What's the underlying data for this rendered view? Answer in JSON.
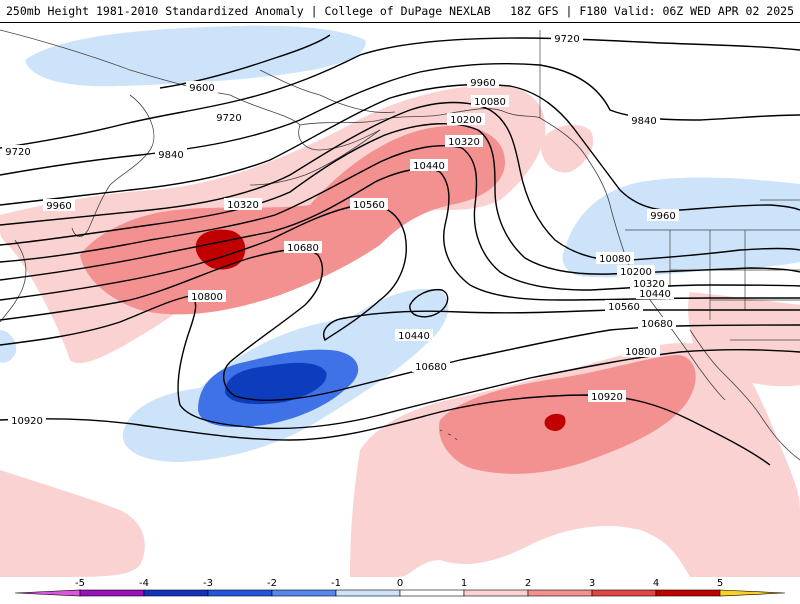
{
  "header": {
    "title_left": "250mb Height 1981-2010 Standardized Anomaly | College of DuPage NEXLAB",
    "title_right": "18Z GFS | F180 Valid: 06Z WED APR 02 2025"
  },
  "legend": {
    "ticks": [
      "-5",
      "-4",
      "-3",
      "-2",
      "-1",
      "0",
      "1",
      "2",
      "3",
      "4",
      "5"
    ],
    "colors": [
      "#dd55dd",
      "#9911bb",
      "#1133bb",
      "#2255dd",
      "#5588ee",
      "#cce3fa",
      "#ffffff",
      "#fad2d2",
      "#f39090",
      "#e14545",
      "#c00000",
      "#f09a00",
      "#fcd020"
    ]
  },
  "contour_labels": {
    "c9600": "9600",
    "c9720a": "9720",
    "c9720b": "9720",
    "c9720c": "9720",
    "c9840a": "9840",
    "c9840b": "9840",
    "c9960a": "9960",
    "c9960b": "9960",
    "c9960c": "9960",
    "c10080a": "10080",
    "c10080b": "10080",
    "c10200a": "10200",
    "c10200b": "10200",
    "c10320a": "10320",
    "c10320b": "10320",
    "c10320c": "10320",
    "c10440a": "10440",
    "c10440b": "10440",
    "c10440c": "10440",
    "c10560a": "10560",
    "c10560b": "10560",
    "c10680a": "10680",
    "c10680b": "10680",
    "c10680c": "10680",
    "c10800a": "10800",
    "c10800b": "10800",
    "c10920a": "10920",
    "c10920b": "10920"
  }
}
